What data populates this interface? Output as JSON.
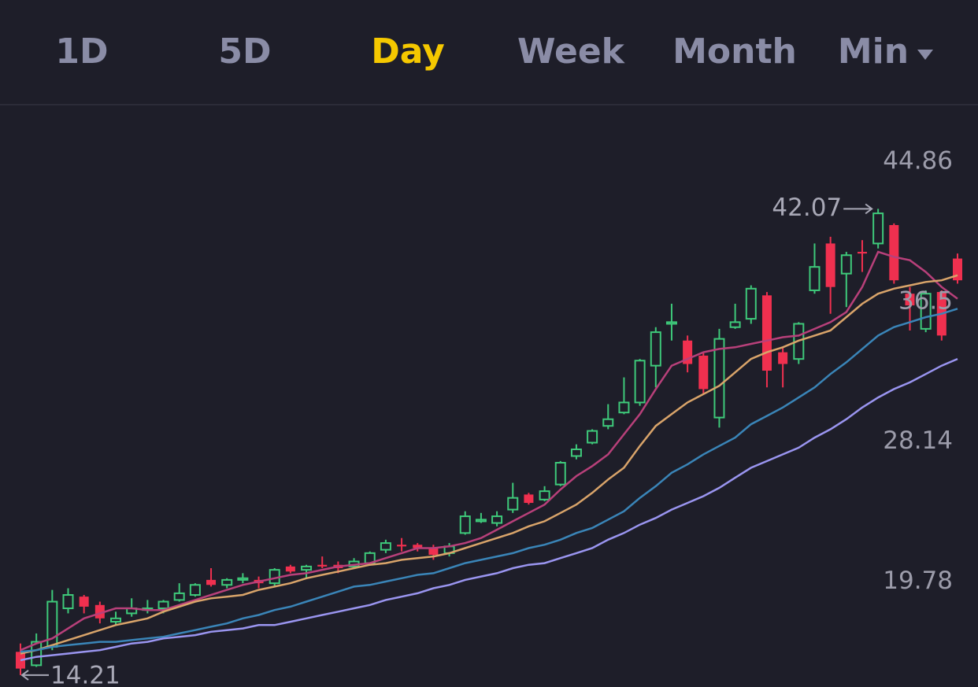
{
  "tabs": [
    "1D",
    "5D",
    "Day",
    "Week",
    "Month",
    "Min"
  ],
  "active_tab": "Day",
  "chart_data": {
    "type": "candlestick",
    "ylim": [
      13.5,
      48.2
    ],
    "yticks": [
      44.86,
      36.5,
      28.14,
      19.78
    ],
    "high_label": "42.07",
    "low_label": "14.21",
    "up_color": "#3ec97a",
    "down_color": "#f0304f",
    "open": [
      15.6,
      14.8,
      15.9,
      18.2,
      18.9,
      18.4,
      17.4,
      17.9,
      18.1,
      18.2,
      18.7,
      19.0,
      19.9,
      19.6,
      19.9,
      19.9,
      19.7,
      20.7,
      20.5,
      20.8,
      20.8,
      20.7,
      20.9,
      21.7,
      22.0,
      22.0,
      21.8,
      21.5,
      22.7,
      23.4,
      23.3,
      24.1,
      25.0,
      24.7,
      25.6,
      27.3,
      28.1,
      29.1,
      29.9,
      30.5,
      32.7,
      35.2,
      34.2,
      33.3,
      29.6,
      35.0,
      35.5,
      36.9,
      33.5,
      33.1,
      37.2,
      40.0,
      38.2,
      39.5,
      40.0,
      41.1,
      37.0,
      34.9,
      37.1,
      39.1
    ],
    "high": [
      16.1,
      16.7,
      19.3,
      19.4,
      19.0,
      18.6,
      18.0,
      18.8,
      18.7,
      18.7,
      19.7,
      19.7,
      20.6,
      20.0,
      20.3,
      20.1,
      20.6,
      20.8,
      20.8,
      21.3,
      21.0,
      21.2,
      21.6,
      22.3,
      22.4,
      22.1,
      22.0,
      22.1,
      24.0,
      23.9,
      24.0,
      25.7,
      25.1,
      25.5,
      27.0,
      28.0,
      28.9,
      30.4,
      32.0,
      33.1,
      35.0,
      36.4,
      34.5,
      33.5,
      34.9,
      36.4,
      37.5,
      37.1,
      33.8,
      35.3,
      40.0,
      40.4,
      39.5,
      40.2,
      42.07,
      41.2,
      37.4,
      37.2,
      37.2,
      39.4
    ],
    "low": [
      14.21,
      14.7,
      15.7,
      17.9,
      17.9,
      17.3,
      17.2,
      17.7,
      17.9,
      17.9,
      18.6,
      18.9,
      19.5,
      19.4,
      19.7,
      19.4,
      19.5,
      20.3,
      20.0,
      20.6,
      20.3,
      20.6,
      20.8,
      21.5,
      21.6,
      21.6,
      21.1,
      21.3,
      22.6,
      23.3,
      23.1,
      23.9,
      24.4,
      24.6,
      25.5,
      27.1,
      28.0,
      28.9,
      29.8,
      30.3,
      31.4,
      34.2,
      32.3,
      31.0,
      29.0,
      34.9,
      35.2,
      31.4,
      31.4,
      32.8,
      37.0,
      35.8,
      36.2,
      38.3,
      39.7,
      37.6,
      34.8,
      34.7,
      34.2,
      37.6
    ],
    "close": [
      14.6,
      16.2,
      18.6,
      19.0,
      18.3,
      17.6,
      17.6,
      18.2,
      18.2,
      18.6,
      19.1,
      19.6,
      19.6,
      19.9,
      20.0,
      19.7,
      20.5,
      20.4,
      20.7,
      20.7,
      20.6,
      21.0,
      21.5,
      22.1,
      21.9,
      21.8,
      21.4,
      21.9,
      23.7,
      23.5,
      23.7,
      24.8,
      24.5,
      25.2,
      26.9,
      27.7,
      28.8,
      29.5,
      30.5,
      33.0,
      34.7,
      35.3,
      32.8,
      31.3,
      34.3,
      35.3,
      37.3,
      32.4,
      32.8,
      35.2,
      38.6,
      37.4,
      39.3,
      39.4,
      41.8,
      37.8,
      36.3,
      37.0,
      34.5,
      37.8
    ],
    "series": [
      {
        "color": "#b8407a",
        "values": [
          15.7,
          16.1,
          16.4,
          17.0,
          17.6,
          17.9,
          18.2,
          18.2,
          18.1,
          18.1,
          18.4,
          18.7,
          19.0,
          19.3,
          19.6,
          19.8,
          20.0,
          20.2,
          20.3,
          20.5,
          20.7,
          20.8,
          20.9,
          21.2,
          21.5,
          21.8,
          21.8,
          21.9,
          22.1,
          22.4,
          22.9,
          23.4,
          23.9,
          24.4,
          25.3,
          26.1,
          26.7,
          27.4,
          28.6,
          29.8,
          31.3,
          32.7,
          33.1,
          33.5,
          33.7,
          33.8,
          34.0,
          34.2,
          34.4,
          34.5,
          34.9,
          35.3,
          35.9,
          37.4,
          39.5,
          39.2,
          39.0,
          38.3,
          37.4,
          36.7
        ]
      },
      {
        "color": "#d9a46a",
        "values": [
          15.5,
          15.7,
          16.0,
          16.3,
          16.6,
          16.9,
          17.2,
          17.4,
          17.6,
          18.0,
          18.3,
          18.6,
          18.8,
          18.9,
          19.0,
          19.3,
          19.5,
          19.7,
          20.0,
          20.2,
          20.4,
          20.6,
          20.8,
          20.9,
          21.1,
          21.2,
          21.3,
          21.5,
          21.8,
          22.1,
          22.4,
          22.7,
          23.1,
          23.4,
          23.9,
          24.4,
          25.1,
          25.9,
          26.6,
          27.9,
          29.1,
          29.8,
          30.5,
          31.0,
          31.5,
          32.3,
          33.1,
          33.5,
          33.8,
          34.2,
          34.5,
          34.8,
          35.6,
          36.4,
          37.0,
          37.3,
          37.5,
          37.7,
          37.8,
          38.1
        ]
      },
      {
        "color": "#3a85b8",
        "values": [
          15.6,
          15.7,
          15.9,
          16.0,
          16.1,
          16.2,
          16.2,
          16.3,
          16.4,
          16.5,
          16.7,
          16.9,
          17.1,
          17.3,
          17.6,
          17.8,
          18.1,
          18.3,
          18.6,
          18.9,
          19.2,
          19.5,
          19.6,
          19.8,
          20.0,
          20.2,
          20.3,
          20.6,
          20.9,
          21.1,
          21.3,
          21.5,
          21.8,
          22.0,
          22.3,
          22.7,
          23.0,
          23.5,
          24.0,
          24.8,
          25.5,
          26.3,
          26.8,
          27.4,
          27.9,
          28.4,
          29.2,
          29.7,
          30.2,
          30.8,
          31.4,
          32.2,
          32.9,
          33.7,
          34.5,
          35.0,
          35.3,
          35.6,
          35.8,
          36.1
        ]
      },
      {
        "color": "#9a95f0",
        "values": [
          15.1,
          15.3,
          15.4,
          15.5,
          15.6,
          15.7,
          15.9,
          16.1,
          16.2,
          16.4,
          16.5,
          16.6,
          16.8,
          16.9,
          17.0,
          17.2,
          17.2,
          17.4,
          17.6,
          17.8,
          18.0,
          18.2,
          18.4,
          18.7,
          18.9,
          19.1,
          19.4,
          19.6,
          19.9,
          20.1,
          20.3,
          20.6,
          20.8,
          20.9,
          21.2,
          21.5,
          21.8,
          22.3,
          22.7,
          23.2,
          23.6,
          24.1,
          24.5,
          24.9,
          25.4,
          26.0,
          26.6,
          27.0,
          27.4,
          27.8,
          28.4,
          28.9,
          29.5,
          30.2,
          30.8,
          31.3,
          31.7,
          32.2,
          32.7,
          33.1
        ]
      }
    ]
  }
}
